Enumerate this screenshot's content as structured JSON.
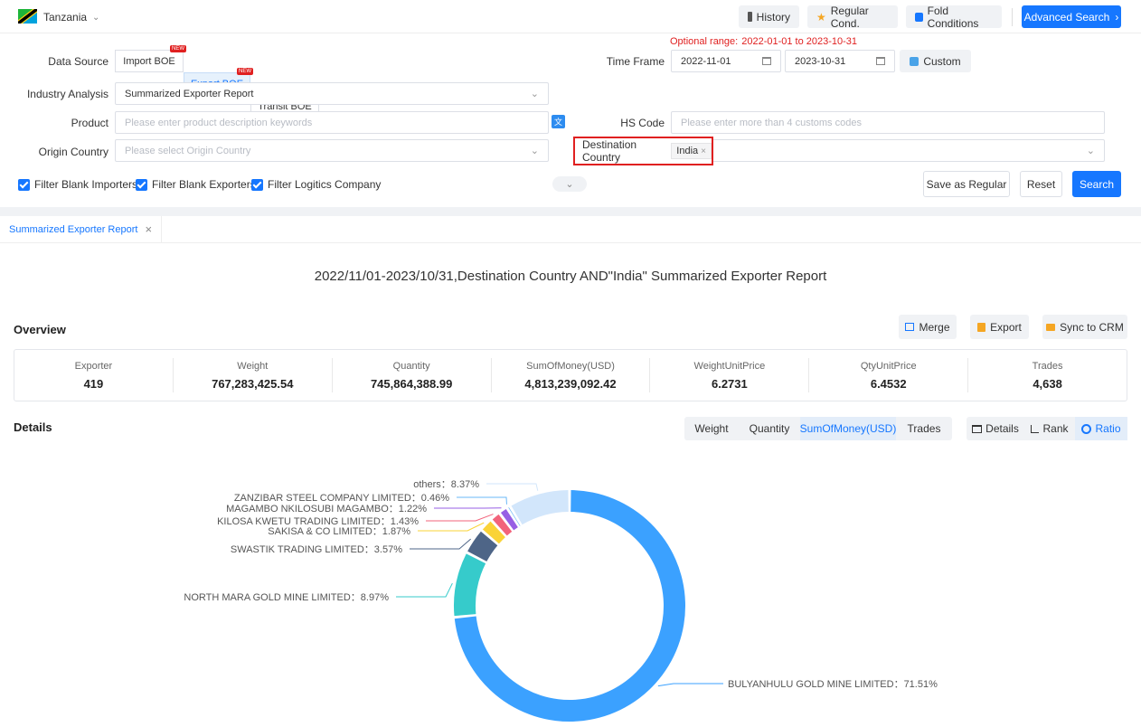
{
  "topbar": {
    "country": "Tanzania",
    "history": "History",
    "regular_cond": "Regular Cond.",
    "fold_conditions": "Fold Conditions",
    "advanced_search": "Advanced Search"
  },
  "form": {
    "optional_range_label": "Optional range:",
    "optional_range_value": "2022-01-01 to 2023-10-31",
    "data_source_label": "Data Source",
    "data_sources": [
      "Import BOE",
      "Export BOE",
      "Transit BOE"
    ],
    "new_badge": "NEW",
    "time_frame_label": "Time Frame",
    "date_from": "2022-11-01",
    "date_to": "2023-10-31",
    "custom": "Custom",
    "industry_label": "Industry Analysis",
    "industry_value": "Summarized Exporter Report",
    "product_label": "Product",
    "product_placeholder": "Please enter product description keywords",
    "hs_label": "HS Code",
    "hs_placeholder": "Please enter more than 4 customs codes",
    "origin_label": "Origin Country",
    "origin_placeholder": "Please select Origin Country",
    "dest_label": "Destination Country",
    "dest_value": "India",
    "filters": [
      "Filter Blank Importers",
      "Filter Blank Exporters",
      "Filter Logitics Company"
    ],
    "save_regular": "Save as Regular",
    "reset": "Reset",
    "search": "Search"
  },
  "tab": {
    "label": "Summarized Exporter Report"
  },
  "report": {
    "title": "2022/11/01-2023/10/31,Destination Country AND\"India\" Summarized Exporter Report",
    "overview_label": "Overview",
    "merge": "Merge",
    "export": "Export",
    "sync_crm": "Sync to CRM",
    "stats": [
      {
        "key": "Exporter",
        "value": "419"
      },
      {
        "key": "Weight",
        "value": "767,283,425.54"
      },
      {
        "key": "Quantity",
        "value": "745,864,388.99"
      },
      {
        "key": "SumOfMoney(USD)",
        "value": "4,813,239,092.42"
      },
      {
        "key": "WeightUnitPrice",
        "value": "6.2731"
      },
      {
        "key": "QtyUnitPrice",
        "value": "6.4532"
      },
      {
        "key": "Trades",
        "value": "4,638"
      }
    ],
    "details_label": "Details",
    "metric_tabs": [
      "Weight",
      "Quantity",
      "SumOfMoney(USD)",
      "Trades"
    ],
    "active_metric": "SumOfMoney(USD)",
    "view_tabs": [
      "Details",
      "Rank",
      "Ratio"
    ],
    "active_view": "Ratio"
  },
  "chart_data": {
    "type": "pie",
    "title": "",
    "slices": [
      {
        "label": "BULYANHULU GOLD MINE LIMITED",
        "pct_text": "71.51%",
        "value": 71.51,
        "color": "#3ba1ff"
      },
      {
        "label": "NORTH MARA GOLD MINE LIMITED",
        "pct_text": "8.97%",
        "value": 8.97,
        "color": "#36cbcb"
      },
      {
        "label": "SWASTIK TRADING LIMITED",
        "pct_text": "3.57%",
        "value": 3.57,
        "color": "#4e6587"
      },
      {
        "label": "SAKISA & CO LIMITED",
        "pct_text": "1.87%",
        "value": 1.87,
        "color": "#fad337"
      },
      {
        "label": "KILOSA KWETU TRADING LIMITED",
        "pct_text": "1.43%",
        "value": 1.43,
        "color": "#f2637b"
      },
      {
        "label": "MAGAMBO NKILOSUBI MAGAMBO",
        "pct_text": "1.22%",
        "value": 1.22,
        "color": "#975fe4"
      },
      {
        "label": "ZANZIBAR STEEL COMPANY LIMITED",
        "pct_text": "0.46%",
        "value": 0.46,
        "color": "#6ab8f7"
      },
      {
        "label": "others",
        "pct_text": "8.37%",
        "value": 8.37,
        "color": "#d2e6fb"
      }
    ]
  }
}
